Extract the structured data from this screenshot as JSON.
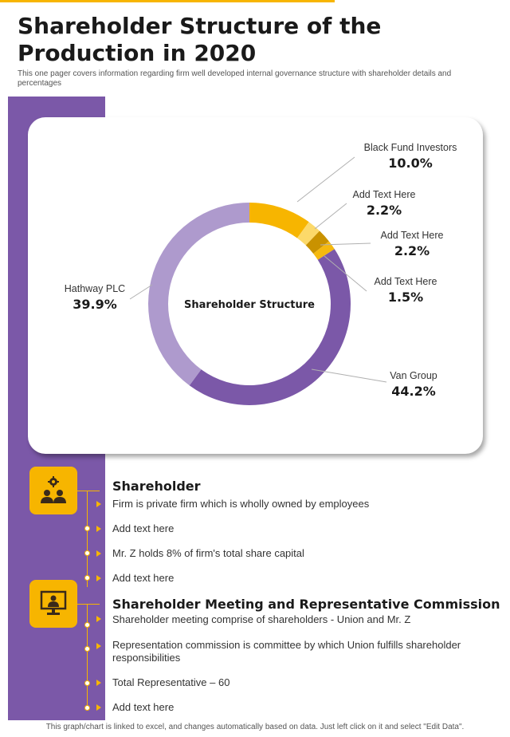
{
  "header": {
    "title": "Shareholder Structure of the Production in 2020",
    "subtitle": "This one pager covers information regarding firm well developed internal governance structure with shareholder details and percentages"
  },
  "chart_data": {
    "type": "pie",
    "variant": "donut",
    "center_label": "Shareholder  Structure",
    "slices": [
      {
        "label": "Black Fund Investors",
        "value": 10.0,
        "display": "10.0%",
        "color": "#f7b500"
      },
      {
        "label": "Add Text Here",
        "value": 2.2,
        "display": "2.2%",
        "color": "#fcd96a"
      },
      {
        "label": "Add Text Here",
        "value": 2.2,
        "display": "2.2%",
        "color": "#c99200"
      },
      {
        "label": "Add Text Here",
        "value": 1.5,
        "display": "1.5%",
        "color": "#f5b90f"
      },
      {
        "label": "Van Group",
        "value": 44.2,
        "display": "44.2%",
        "color": "#7b58a8"
      },
      {
        "label": "Hathway PLC",
        "value": 39.9,
        "display": "39.9%",
        "color": "#ae9acd"
      }
    ]
  },
  "sections": [
    {
      "heading": "Shareholder",
      "icon": "shareholders-gear-icon",
      "items": [
        "Firm is private firm which is wholly owned by employees",
        "Add text here",
        "Mr. Z holds 8% of firm's total share capital",
        "Add text here"
      ]
    },
    {
      "heading": "Shareholder Meeting and Representative Commission",
      "icon": "presentation-monitor-icon",
      "items": [
        "Shareholder meeting comprise of shareholders - Union  and Mr. Z",
        "Representation commission is committee by which Union fulfills shareholder responsibilities",
        "Total Representative – 60",
        "Add text here"
      ]
    }
  ],
  "footer": "This graph/chart is linked to excel,  and changes automatically based on data. Just left click on it and select \"Edit Data\".",
  "colors": {
    "accent": "#f7b500",
    "purple": "#7b58a8",
    "light_purple": "#ae9acd"
  }
}
